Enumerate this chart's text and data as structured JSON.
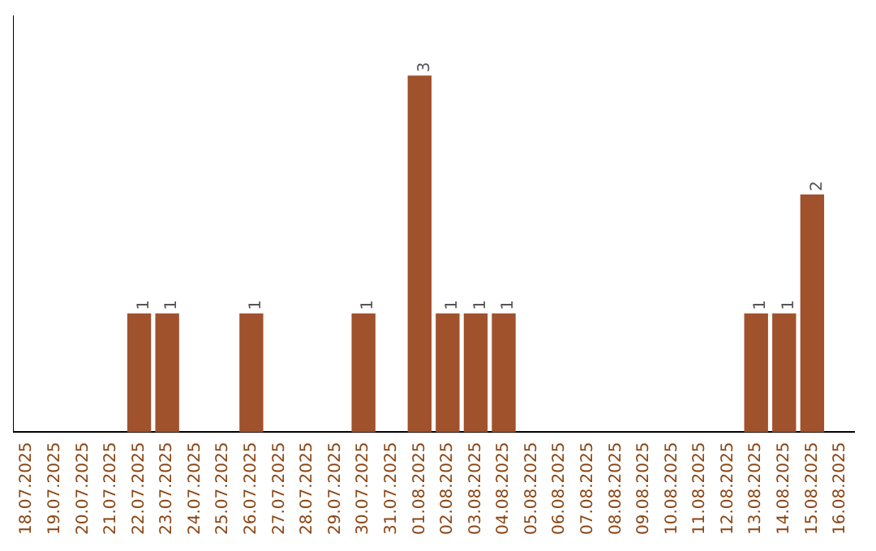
{
  "chart_data": {
    "type": "bar",
    "categories": [
      "18.07.2025",
      "19.07.2025",
      "20.07.2025",
      "21.07.2025",
      "22.07.2025",
      "23.07.2025",
      "24.07.2025",
      "25.07.2025",
      "26.07.2025",
      "27.07.2025",
      "28.07.2025",
      "29.07.2025",
      "30.07.2025",
      "31.07.2025",
      "01.08.2025",
      "02.08.2025",
      "03.08.2025",
      "04.08.2025",
      "05.08.2025",
      "06.08.2025",
      "07.08.2025",
      "08.08.2025",
      "09.08.2025",
      "10.08.2025",
      "11.08.2025",
      "12.08.2025",
      "13.08.2025",
      "14.08.2025",
      "15.08.2025",
      "16.08.2025"
    ],
    "values": [
      0,
      0,
      0,
      0,
      1,
      1,
      0,
      0,
      1,
      0,
      0,
      0,
      1,
      0,
      3,
      1,
      1,
      1,
      0,
      0,
      0,
      0,
      0,
      0,
      0,
      0,
      1,
      1,
      2,
      0
    ],
    "value_labels": [
      null,
      null,
      null,
      null,
      "1",
      "1",
      null,
      null,
      "1",
      null,
      null,
      null,
      "1",
      null,
      "3",
      "1",
      "1",
      "1",
      null,
      null,
      null,
      null,
      null,
      null,
      null,
      null,
      "1",
      "1",
      "2",
      null
    ],
    "color": "#a0522d",
    "grid": false,
    "legend": false,
    "tick_labels": "x"
  }
}
